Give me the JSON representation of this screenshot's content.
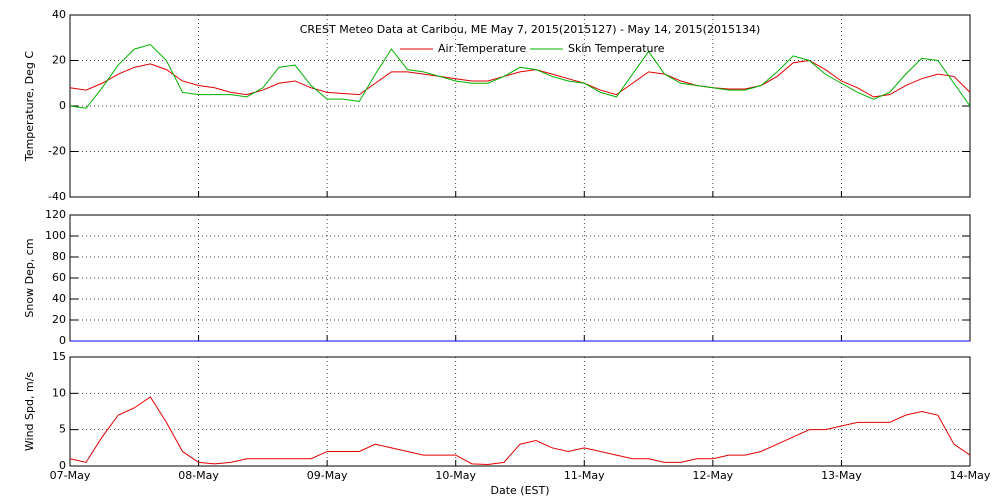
{
  "chart_data": [
    {
      "type": "line",
      "title": "CREST Meteo Data at Caribou, ME   May  7, 2015(2015127) - May 14, 2015(2015134)",
      "ylabel": "Temperature, Deg C",
      "ylim": [
        -40,
        40
      ],
      "yticks": [
        -40,
        -20,
        0,
        20,
        40
      ],
      "xlim": [
        0,
        7
      ],
      "grid": true,
      "x": [
        0,
        0.125,
        0.25,
        0.375,
        0.5,
        0.625,
        0.75,
        0.875,
        1,
        1.125,
        1.25,
        1.375,
        1.5,
        1.625,
        1.75,
        1.875,
        2,
        2.125,
        2.25,
        2.375,
        2.5,
        2.625,
        2.75,
        2.875,
        3,
        3.125,
        3.25,
        3.375,
        3.5,
        3.625,
        3.75,
        3.875,
        4,
        4.125,
        4.25,
        4.375,
        4.5,
        4.625,
        4.75,
        4.875,
        5,
        5.125,
        5.25,
        5.375,
        5.5,
        5.625,
        5.75,
        5.875,
        6,
        6.125,
        6.25,
        6.375,
        6.5,
        6.625,
        6.75,
        6.875,
        7
      ],
      "series": [
        {
          "name": "Air Temperature",
          "color": "#e00000",
          "values": [
            8,
            7,
            10,
            14,
            17,
            18.5,
            16,
            11,
            9,
            8,
            6,
            5,
            7,
            10,
            11,
            8,
            6,
            5.5,
            5,
            10,
            15,
            15,
            14,
            13,
            12,
            11,
            11,
            13,
            15,
            16,
            14,
            12,
            10,
            7,
            5,
            10,
            15,
            14,
            11,
            9,
            8,
            7.5,
            7.5,
            9,
            13,
            19,
            20,
            16,
            11,
            8,
            4,
            5,
            9,
            12,
            14,
            13,
            6
          ]
        },
        {
          "name": "Skin Temperature",
          "color": "#00b000",
          "values": [
            0,
            -1,
            8,
            18,
            25,
            27,
            20,
            6,
            5,
            5,
            5,
            4,
            8,
            17,
            18,
            9,
            3,
            3,
            2,
            14,
            25,
            16,
            15,
            13,
            11,
            10,
            10,
            13,
            17,
            16,
            13,
            11,
            10,
            6,
            4,
            14,
            24,
            14,
            10,
            9,
            8,
            7,
            7,
            9,
            15,
            22,
            20,
            14,
            10,
            6,
            3,
            6,
            14,
            21,
            20,
            10,
            0
          ]
        }
      ]
    },
    {
      "type": "line",
      "ylabel": "Snow Dep, cm",
      "ylim": [
        0,
        120
      ],
      "yticks": [
        0,
        20,
        40,
        60,
        80,
        100,
        120
      ],
      "xlim": [
        0,
        7
      ],
      "grid": true,
      "x": [
        0,
        0.125,
        0.25,
        0.375,
        0.5,
        0.625,
        0.75,
        0.875,
        1,
        1.125,
        1.25,
        1.375,
        1.5,
        1.625,
        1.75,
        1.875,
        2,
        2.125,
        2.25,
        2.375,
        2.5,
        2.625,
        2.75,
        2.875,
        3,
        3.125,
        3.25,
        3.375,
        3.5,
        3.625,
        3.75,
        3.875,
        4,
        4.125,
        4.25,
        4.375,
        4.5,
        4.625,
        4.75,
        4.875,
        5,
        5.125,
        5.25,
        5.375,
        5.5,
        5.625,
        5.75,
        5.875,
        6,
        6.125,
        6.25,
        6.375,
        6.5,
        6.625,
        6.75,
        6.875,
        7
      ],
      "series": [
        {
          "color": "#0000ff",
          "values": [
            0,
            0,
            0,
            0,
            0,
            0,
            0,
            0,
            0,
            0,
            0,
            0,
            0,
            0,
            0,
            0,
            0,
            0,
            0,
            0,
            0,
            0,
            0,
            0,
            0,
            0,
            0,
            0,
            0,
            0,
            0,
            0,
            0,
            0,
            0,
            0,
            0,
            0,
            0,
            0,
            0,
            0,
            0,
            0,
            0,
            0,
            0,
            0,
            0,
            0,
            0,
            0,
            0,
            0,
            0,
            0,
            0
          ]
        }
      ]
    },
    {
      "type": "line",
      "ylabel": "Wind Spd, m/s",
      "xlabel": "Date (EST)",
      "ylim": [
        0,
        15
      ],
      "yticks": [
        0,
        5,
        10,
        15
      ],
      "xlim": [
        0,
        7
      ],
      "grid": true,
      "xticks": [
        {
          "value": 0,
          "label": "07-May"
        },
        {
          "value": 1,
          "label": "08-May"
        },
        {
          "value": 2,
          "label": "09-May"
        },
        {
          "value": 3,
          "label": "10-May"
        },
        {
          "value": 4,
          "label": "11-May"
        },
        {
          "value": 5,
          "label": "12-May"
        },
        {
          "value": 6,
          "label": "13-May"
        },
        {
          "value": 7,
          "label": "14-May"
        }
      ],
      "x": [
        0,
        0.125,
        0.25,
        0.375,
        0.5,
        0.625,
        0.75,
        0.875,
        1,
        1.125,
        1.25,
        1.375,
        1.5,
        1.625,
        1.75,
        1.875,
        2,
        2.125,
        2.25,
        2.375,
        2.5,
        2.625,
        2.75,
        2.875,
        3,
        3.125,
        3.25,
        3.375,
        3.5,
        3.625,
        3.75,
        3.875,
        4,
        4.125,
        4.25,
        4.375,
        4.5,
        4.625,
        4.75,
        4.875,
        5,
        5.125,
        5.25,
        5.375,
        5.5,
        5.625,
        5.75,
        5.875,
        6,
        6.125,
        6.25,
        6.375,
        6.5,
        6.625,
        6.75,
        6.875,
        7
      ],
      "series": [
        {
          "color": "#e00000",
          "values": [
            1,
            0.5,
            4,
            7,
            8,
            9.5,
            6,
            2,
            0.5,
            0.3,
            0.5,
            1,
            1,
            1,
            1,
            1,
            2,
            2,
            2,
            3,
            2.5,
            2,
            1.5,
            1.5,
            1.5,
            0.3,
            0.2,
            0.5,
            3,
            3.5,
            2.5,
            2,
            2.5,
            2,
            1.5,
            1,
            1,
            0.5,
            0.5,
            1,
            1,
            1.5,
            1.5,
            2,
            3,
            4,
            5,
            5,
            5.5,
            6,
            6,
            6,
            7,
            7.5,
            7,
            3,
            1.5
          ]
        }
      ]
    }
  ]
}
